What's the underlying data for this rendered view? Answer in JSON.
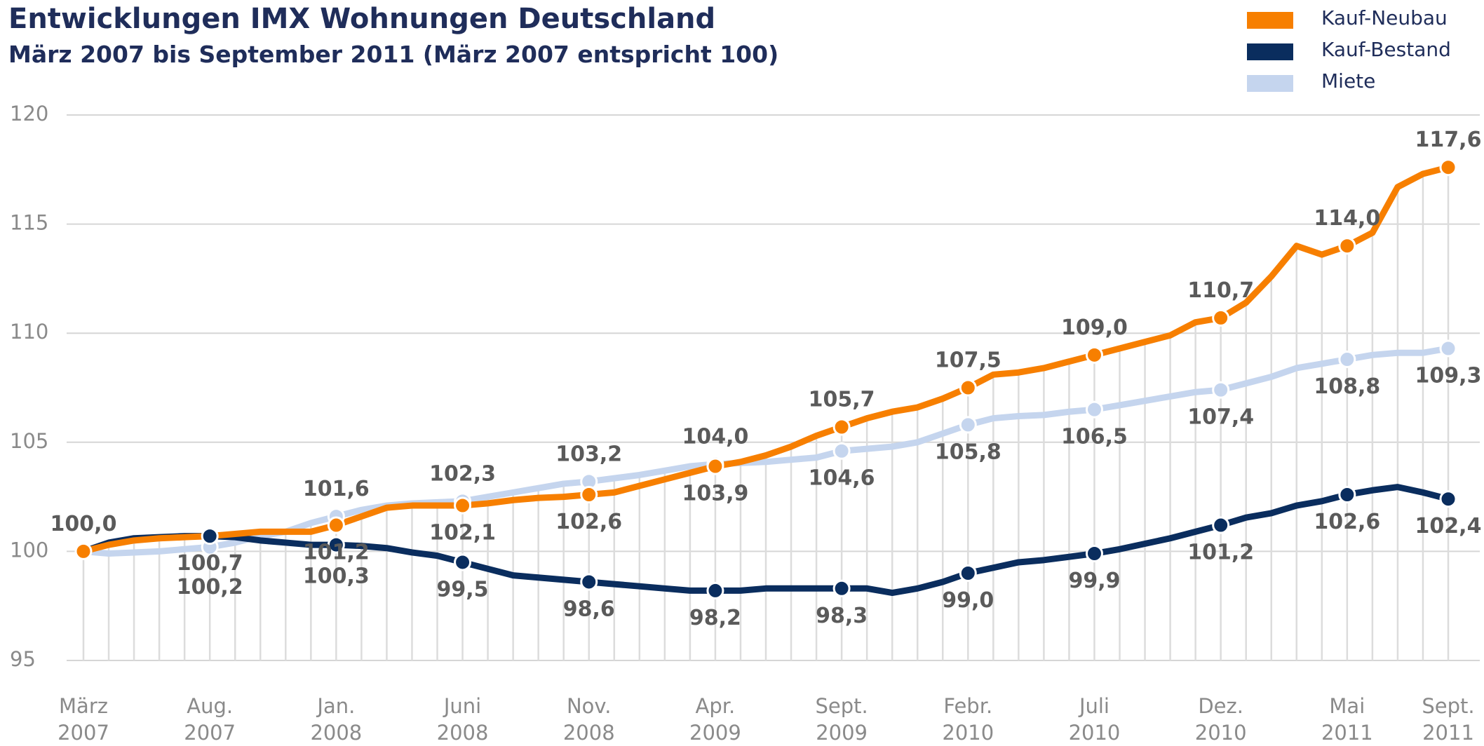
{
  "chart_data": {
    "type": "line",
    "title": "Entwicklungen IMX Wohnungen Deutschland",
    "subtitle": "März 2007 bis September 2011 (März 2007 entspricht 100)",
    "categories": [
      "März 2007",
      null,
      null,
      null,
      null,
      "Aug. 2007",
      null,
      null,
      null,
      null,
      "Jan. 2008",
      null,
      null,
      null,
      null,
      "Juni 2008",
      null,
      null,
      null,
      null,
      "Nov. 2008",
      null,
      null,
      null,
      null,
      "Apr. 2009",
      null,
      null,
      null,
      null,
      "Sept. 2009",
      null,
      null,
      null,
      null,
      "Febr. 2010",
      null,
      null,
      null,
      null,
      "Juli 2010",
      null,
      null,
      null,
      null,
      "Dez. 2010",
      null,
      null,
      null,
      null,
      "Mai 2011",
      null,
      null,
      null,
      "Sept. 2011"
    ],
    "ylim": [
      95,
      120
    ],
    "yticks": [
      95,
      100,
      105,
      110,
      115,
      120
    ],
    "grid": true,
    "legend": "top-right",
    "series": [
      {
        "name": "Kauf-Neubau",
        "color": "#f77f00",
        "values": [
          100.0,
          100.3,
          100.5,
          100.6,
          100.65,
          100.7,
          100.8,
          100.9,
          100.9,
          100.9,
          101.2,
          101.6,
          102.0,
          102.1,
          102.1,
          102.1,
          102.2,
          102.35,
          102.45,
          102.5,
          102.6,
          102.7,
          103.0,
          103.3,
          103.6,
          103.9,
          104.1,
          104.4,
          104.8,
          105.3,
          105.7,
          106.1,
          106.4,
          106.6,
          107.0,
          107.5,
          108.1,
          108.2,
          108.4,
          108.7,
          109.0,
          109.3,
          109.6,
          109.9,
          110.5,
          110.7,
          111.4,
          112.6,
          114.0,
          113.6,
          114.0,
          114.6,
          116.7,
          117.3,
          117.6
        ],
        "value_labels": [
          "100,0",
          null,
          null,
          null,
          null,
          null,
          null,
          null,
          null,
          null,
          "101,2",
          null,
          null,
          null,
          null,
          "102,1",
          null,
          null,
          null,
          null,
          "102,6",
          null,
          null,
          null,
          null,
          "103,9",
          null,
          null,
          null,
          null,
          "105,7",
          null,
          null,
          null,
          null,
          "107,5",
          null,
          null,
          null,
          null,
          "109,0",
          null,
          null,
          null,
          null,
          "110,7",
          null,
          null,
          null,
          null,
          "114,0",
          null,
          null,
          null,
          "117,6"
        ]
      },
      {
        "name": "Kauf-Bestand",
        "color": "#0a2d5e",
        "values": [
          100.0,
          100.4,
          100.6,
          100.65,
          100.7,
          100.7,
          100.65,
          100.5,
          100.4,
          100.3,
          100.3,
          100.25,
          100.15,
          99.95,
          99.8,
          99.5,
          99.2,
          98.9,
          98.8,
          98.7,
          98.6,
          98.5,
          98.4,
          98.3,
          98.2,
          98.2,
          98.2,
          98.3,
          98.3,
          98.3,
          98.3,
          98.3,
          98.1,
          98.3,
          98.6,
          99.0,
          99.25,
          99.5,
          99.6,
          99.75,
          99.9,
          100.1,
          100.35,
          100.6,
          100.9,
          101.2,
          101.55,
          101.75,
          102.1,
          102.3,
          102.6,
          102.8,
          102.95,
          102.7,
          102.4
        ],
        "value_labels": [
          null,
          null,
          null,
          null,
          null,
          "100,7",
          null,
          null,
          null,
          null,
          "100,3",
          null,
          null,
          null,
          null,
          "99,5",
          null,
          null,
          null,
          null,
          "98,6",
          null,
          null,
          null,
          null,
          "98,2",
          null,
          null,
          null,
          null,
          "98,3",
          null,
          null,
          null,
          null,
          "99,0",
          null,
          null,
          null,
          null,
          "99,9",
          null,
          null,
          null,
          null,
          "101,2",
          null,
          null,
          null,
          null,
          "102,6",
          null,
          null,
          null,
          "102,4"
        ]
      },
      {
        "name": "Miete",
        "color": "#c5d5ee",
        "values": [
          100.0,
          99.9,
          99.95,
          100.0,
          100.1,
          100.2,
          100.4,
          100.7,
          100.9,
          101.3,
          101.6,
          101.9,
          102.1,
          102.2,
          102.25,
          102.3,
          102.5,
          102.7,
          102.9,
          103.1,
          103.2,
          103.35,
          103.5,
          103.7,
          103.9,
          104.0,
          104.05,
          104.1,
          104.2,
          104.3,
          104.6,
          104.7,
          104.8,
          105.0,
          105.4,
          105.8,
          106.1,
          106.2,
          106.25,
          106.4,
          106.5,
          106.7,
          106.9,
          107.1,
          107.3,
          107.4,
          107.7,
          108.0,
          108.4,
          108.6,
          108.8,
          109.0,
          109.1,
          109.1,
          109.3
        ],
        "value_labels": [
          null,
          null,
          null,
          null,
          null,
          "100,2",
          null,
          null,
          null,
          null,
          "101,6",
          null,
          null,
          null,
          null,
          "102,3",
          null,
          null,
          null,
          null,
          "103,2",
          null,
          null,
          null,
          null,
          "104,0",
          null,
          null,
          null,
          null,
          "104,6",
          null,
          null,
          null,
          null,
          "105,8",
          null,
          null,
          null,
          null,
          "106,5",
          null,
          null,
          null,
          null,
          "107,4",
          null,
          null,
          null,
          null,
          "108,8",
          null,
          null,
          null,
          "109,3"
        ]
      }
    ]
  }
}
